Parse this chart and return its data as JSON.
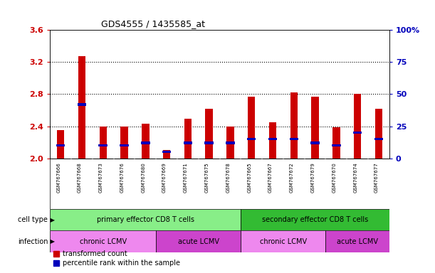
{
  "title": "GDS4555 / 1435585_at",
  "samples": [
    "GSM767666",
    "GSM767668",
    "GSM767673",
    "GSM767676",
    "GSM767680",
    "GSM767669",
    "GSM767671",
    "GSM767675",
    "GSM767678",
    "GSM767665",
    "GSM767667",
    "GSM767672",
    "GSM767679",
    "GSM767670",
    "GSM767674",
    "GSM767677"
  ],
  "transformed_count": [
    2.35,
    3.27,
    2.4,
    2.4,
    2.43,
    2.1,
    2.49,
    2.62,
    2.4,
    2.77,
    2.45,
    2.82,
    2.77,
    2.39,
    2.8,
    2.62
  ],
  "percentile_pct": [
    10,
    42,
    10,
    10,
    12,
    5,
    12,
    12,
    12,
    15,
    15,
    15,
    12,
    10,
    20,
    15
  ],
  "ymin": 2.0,
  "ymax": 3.6,
  "yticks": [
    2.0,
    2.4,
    2.8,
    3.2,
    3.6
  ],
  "right_yticks": [
    0,
    25,
    50,
    75,
    100
  ],
  "bar_color": "#cc0000",
  "pct_color": "#0000bb",
  "bar_width": 0.35,
  "cell_type_groups": [
    {
      "label": "primary effector CD8 T cells",
      "start": 0,
      "end": 9,
      "color": "#88ee88"
    },
    {
      "label": "secondary effector CD8 T cells",
      "start": 9,
      "end": 16,
      "color": "#33bb33"
    }
  ],
  "infection_groups": [
    {
      "label": "chronic LCMV",
      "start": 0,
      "end": 5,
      "color": "#ee88ee"
    },
    {
      "label": "acute LCMV",
      "start": 5,
      "end": 9,
      "color": "#cc44cc"
    },
    {
      "label": "chronic LCMV",
      "start": 9,
      "end": 13,
      "color": "#ee88ee"
    },
    {
      "label": "acute LCMV",
      "start": 13,
      "end": 16,
      "color": "#cc44cc"
    }
  ],
  "legend_bar_label": "transformed count",
  "legend_pct_label": "percentile rank within the sample",
  "cell_type_label": "cell type",
  "infection_label": "infection",
  "plot_bg_color": "#e8e8e8",
  "tick_label_color_left": "#cc0000",
  "tick_label_color_right": "#0000bb",
  "fig_width": 6.11,
  "fig_height": 3.84,
  "dpi": 100
}
